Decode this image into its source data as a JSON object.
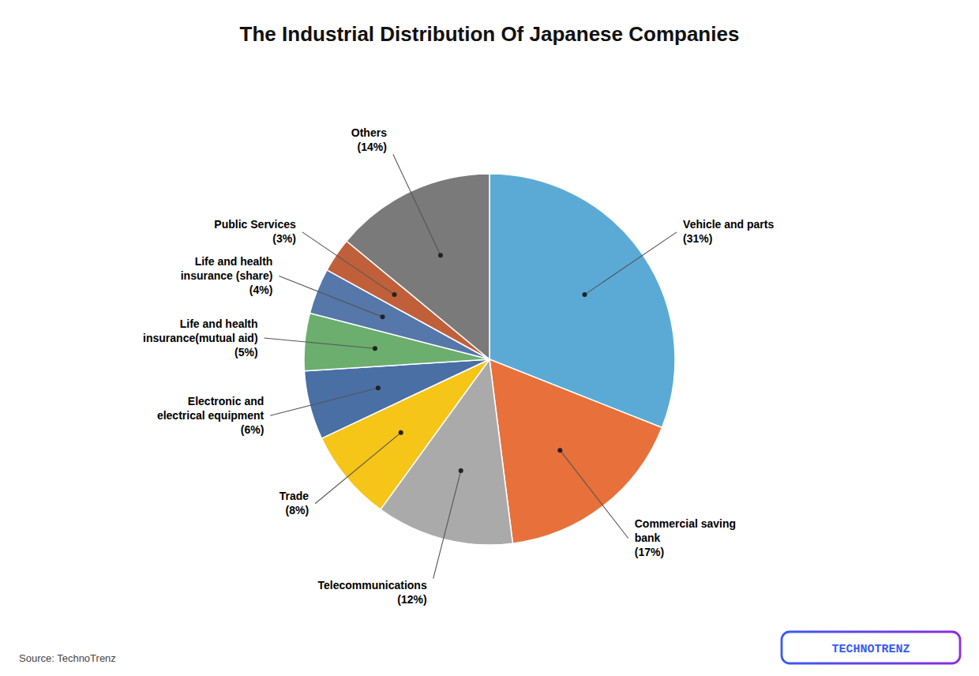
{
  "chart_data": {
    "type": "pie",
    "title": "The Industrial Distribution Of Japanese Companies",
    "categories": [
      "Vehicle and parts",
      "Commercial saving\nbank",
      "Telecommunications",
      "Trade",
      "Electronic and\nelectrical equipment",
      "Life and health\ninsurance(mutual aid)",
      "Life and health\ninsurance (share)",
      "Public Services",
      "Others"
    ],
    "values": [
      31,
      17,
      12,
      8,
      6,
      5,
      4,
      3,
      14
    ],
    "value_labels": [
      "(31%)",
      "(17%)",
      "(12%)",
      "(8%)",
      "(6%)",
      "(5%)",
      "(4%)",
      "(3%)",
      "(14%)"
    ],
    "colors": [
      "#5BAAD6",
      "#E8703A",
      "#AAAAAA",
      "#F5C518",
      "#4A6FA5",
      "#6BAE6E",
      "#5577AA",
      "#C0603B",
      "#7A7A7A"
    ],
    "data_labels": true,
    "annotations": [
      "Source: TechnoTrenz",
      "TECHNOTRENZ"
    ]
  }
}
